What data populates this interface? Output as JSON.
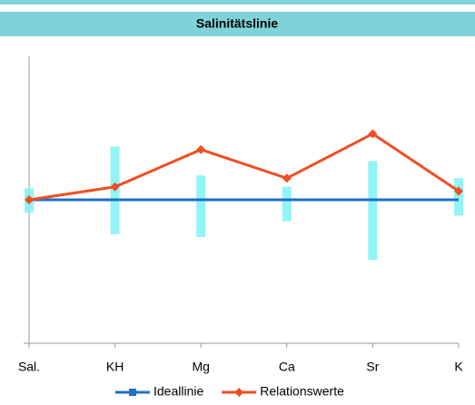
{
  "chart_data": {
    "type": "line",
    "title": "Salinitätslinie",
    "categories": [
      "Sal.",
      "KH",
      "Mg",
      "Ca",
      "Sr",
      "K"
    ],
    "series": [
      {
        "name": "Ideallinie",
        "color": "#1f6fc5",
        "marker": "square",
        "values": [
          1,
          1,
          1,
          1,
          1,
          1
        ]
      },
      {
        "name": "Relationswerte",
        "color": "#f04e23",
        "marker": "diamond",
        "values": [
          1.0,
          1.09,
          1.35,
          1.15,
          1.46,
          1.06
        ]
      }
    ],
    "ranges": {
      "color": "#7ff2f6",
      "low": [
        0.91,
        0.76,
        0.74,
        0.85,
        0.58,
        0.89
      ],
      "high": [
        1.08,
        1.37,
        1.17,
        1.09,
        1.27,
        1.15
      ]
    },
    "ylim": [
      0,
      2
    ]
  }
}
